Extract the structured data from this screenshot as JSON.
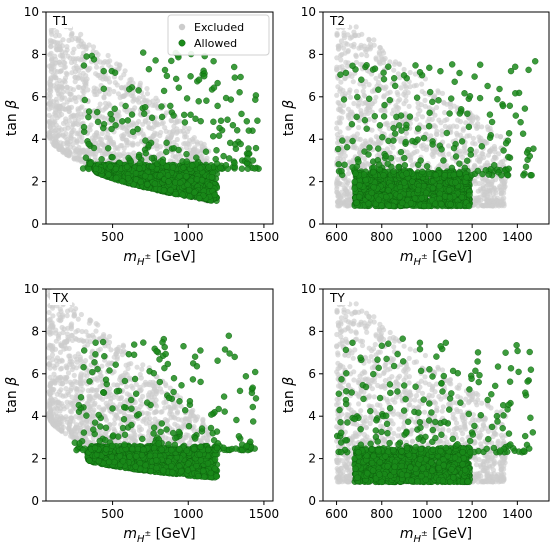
{
  "colors": {
    "excluded": "#cccccc",
    "allowed": "#1a8a1a",
    "allowed_edge": "#0d5e0d",
    "axis": "#000000"
  },
  "legend": {
    "entries": [
      {
        "label": "Excluded",
        "color": "#cccccc"
      },
      {
        "label": "Allowed",
        "color": "#1a8a1a"
      }
    ],
    "placement": "upper-right of panel T1"
  },
  "chart_data": [
    {
      "type": "scatter",
      "panel": "T1",
      "xlabel": "m_{H^±} [GeV]",
      "ylabel": "tan β",
      "xlim": [
        60,
        1560
      ],
      "ylim": [
        0,
        10
      ],
      "xticks": [
        500,
        1000,
        1500
      ],
      "yticks": [
        0,
        2,
        4,
        6,
        8,
        10
      ],
      "legend": true,
      "series": [
        {
          "name": "Excluded",
          "region": {
            "x_range": [
              80,
              1150
            ],
            "boundary_tan_b": {
              "m0": 80,
              "y0": 4.2,
              "m1": 1150,
              "y1": 1.05
            },
            "top": 10
          }
        },
        {
          "name": "Allowed",
          "region": {
            "x_range": [
              300,
              1470
            ],
            "boundary_tan_b": {
              "m0": 300,
              "y0": 3.0,
              "m1": 1200,
              "y1": 1.05
            },
            "dense_top": 2.6
          }
        }
      ]
    },
    {
      "type": "scatter",
      "panel": "T2",
      "xlabel": "m_{H^±} [GeV]",
      "ylabel": "tan β",
      "xlim": [
        540,
        1540
      ],
      "ylim": [
        0,
        10
      ],
      "xticks": [
        600,
        800,
        1000,
        1200,
        1400
      ],
      "yticks": [
        0,
        2,
        4,
        6,
        8,
        10
      ],
      "legend": false,
      "series": [
        {
          "name": "Excluded",
          "region": {
            "x_range": [
              600,
              1350
            ],
            "boundary_tan_b": {
              "m0": 600,
              "y0": 0.85,
              "m1": 1200,
              "y1": 0.85
            },
            "top": 10
          }
        },
        {
          "name": "Allowed",
          "region": {
            "x_range": [
              600,
              1480
            ],
            "boundary_tan_b": {
              "m0": 600,
              "y0": 0.85,
              "m1": 1200,
              "y1": 0.85
            },
            "dense_top": 2.3
          }
        }
      ]
    },
    {
      "type": "scatter",
      "panel": "TX",
      "xlabel": "m_{H^±} [GeV]",
      "ylabel": "tan β",
      "xlim": [
        60,
        1560
      ],
      "ylim": [
        0,
        10
      ],
      "xticks": [
        500,
        1000,
        1500
      ],
      "yticks": [
        0,
        2,
        4,
        6,
        8,
        10
      ],
      "legend": false,
      "series": [
        {
          "name": "Excluded",
          "region": {
            "x_range": [
              80,
              1150
            ],
            "boundary_tan_b": {
              "m0": 80,
              "y0": 4.0,
              "m1": 1150,
              "y1": 1.1
            },
            "top": 10
          }
        },
        {
          "name": "Allowed",
          "region": {
            "x_range": [
              250,
              1450
            ],
            "boundary_tan_b": {
              "m0": 250,
              "y0": 2.2,
              "m1": 1150,
              "y1": 1.1
            },
            "dense_top": 2.4
          }
        }
      ]
    },
    {
      "type": "scatter",
      "panel": "TY",
      "xlabel": "m_{H^±} [GeV]",
      "ylabel": "tan β",
      "xlim": [
        540,
        1540
      ],
      "ylim": [
        0,
        10
      ],
      "xticks": [
        600,
        800,
        1000,
        1200,
        1400
      ],
      "yticks": [
        0,
        2,
        4,
        6,
        8,
        10
      ],
      "legend": false,
      "series": [
        {
          "name": "Excluded",
          "region": {
            "x_range": [
              600,
              1350
            ],
            "boundary_tan_b": {
              "m0": 600,
              "y0": 0.9,
              "m1": 1200,
              "y1": 0.9
            },
            "top": 10
          }
        },
        {
          "name": "Allowed",
          "region": {
            "x_range": [
              600,
              1480
            ],
            "boundary_tan_b": {
              "m0": 600,
              "y0": 0.9,
              "m1": 1200,
              "y1": 0.9
            },
            "dense_top": 2.3
          }
        }
      ]
    }
  ]
}
